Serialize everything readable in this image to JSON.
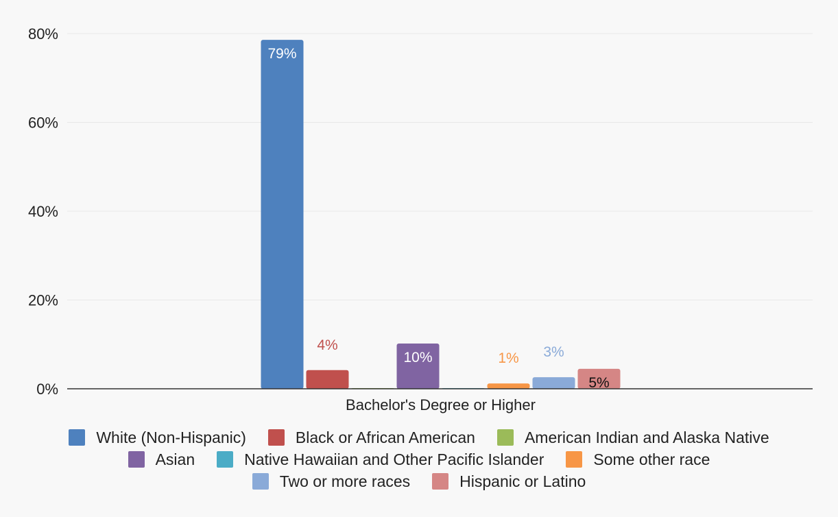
{
  "chart_data": {
    "type": "bar",
    "categories": [
      "Bachelor's Degree or Higher"
    ],
    "ylim": [
      0,
      80
    ],
    "yticks": [
      "0%",
      "20%",
      "40%",
      "60%",
      "80%"
    ],
    "ytick_values": [
      0,
      20,
      40,
      60,
      80
    ],
    "grid": true,
    "legend_position": "bottom",
    "series": [
      {
        "name": "White (Non-Hispanic)",
        "value": 78.6,
        "label": "79%",
        "color": "#4e81be",
        "label_color": "#ffffff",
        "label_inside": true
      },
      {
        "name": "Black or African American",
        "value": 4.2,
        "label": "4%",
        "color": "#c0504d",
        "label_color": "#c0504d",
        "label_inside": false
      },
      {
        "name": "American Indian and Alaska Native",
        "value": 0.1,
        "label": "",
        "color": "#9bbb59",
        "label_color": "#9bbb59",
        "label_inside": false
      },
      {
        "name": "Asian",
        "value": 10.2,
        "label": "10%",
        "color": "#8064a2",
        "label_color": "#ffffff",
        "label_inside": true
      },
      {
        "name": "Native Hawaiian and Other Pacific Islander",
        "value": 0.1,
        "label": "",
        "color": "#4bacc6",
        "label_color": "#4bacc6",
        "label_inside": false
      },
      {
        "name": "Some other race",
        "value": 1.2,
        "label": "1%",
        "color": "#f79646",
        "label_color": "#f79646",
        "label_inside": false
      },
      {
        "name": "Two or more races",
        "value": 2.6,
        "label": "3%",
        "color": "#8aaad8",
        "label_color": "#8aaad8",
        "label_inside": false
      },
      {
        "name": "Hispanic or Latino",
        "value": 4.5,
        "label": "5%",
        "color": "#d58685",
        "label_color": "#111111",
        "label_inside": true
      }
    ]
  },
  "legend_rows": [
    [
      0,
      1,
      2
    ],
    [
      3,
      4,
      5
    ],
    [
      6,
      7
    ]
  ]
}
